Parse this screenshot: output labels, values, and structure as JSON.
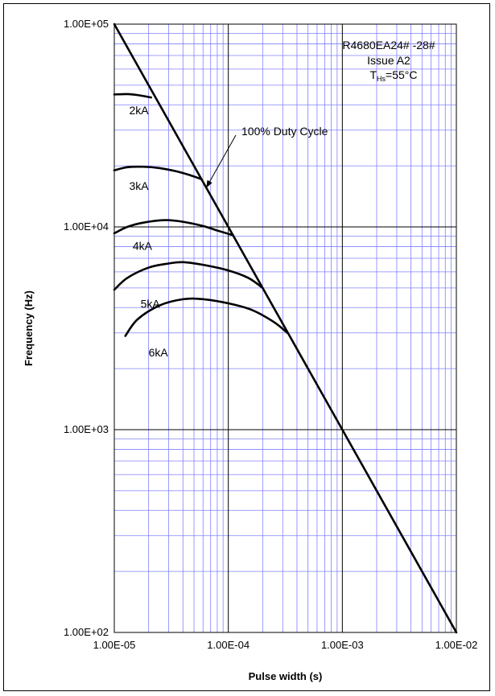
{
  "chart_data": {
    "type": "line",
    "x_scale": "log",
    "y_scale": "log",
    "xlabel": "Pulse width (s)",
    "ylabel": "Frequency (Hz)",
    "xlim": [
      1e-05,
      0.01
    ],
    "ylim": [
      100,
      100000
    ],
    "x_ticks": [
      "1.00E-05",
      "1.00E-04",
      "1.00E-03",
      "1.00E-02"
    ],
    "y_ticks": [
      "1.00E+05",
      "1.00E+04",
      "1.00E+03",
      "1.00E+02"
    ],
    "grid": true,
    "grid_color": "#8080ff",
    "major_grid_color": "#000000",
    "annotation": {
      "lines": [
        "R4680EA24# -28#",
        "Issue A2"
      ],
      "condition_prefix": "T",
      "condition_sub": "Hs",
      "condition_suffix": "=55°C",
      "position": "top-right"
    },
    "duty_cycle_label": "100% Duty Cycle",
    "series": [
      {
        "name": "100% Duty Cycle",
        "points": [
          [
            1e-05,
            100000
          ],
          [
            0.01,
            100
          ]
        ]
      },
      {
        "name": "2kA",
        "points": [
          [
            1e-05,
            45000
          ],
          [
            1.3e-05,
            45200
          ],
          [
            1.6e-05,
            44700
          ],
          [
            2.1e-05,
            43500
          ]
        ]
      },
      {
        "name": "3kA",
        "points": [
          [
            1e-05,
            19000
          ],
          [
            1.3e-05,
            19700
          ],
          [
            1.8e-05,
            19800
          ],
          [
            2.5e-05,
            19500
          ],
          [
            3.5e-05,
            18800
          ],
          [
            4.6e-05,
            18000
          ],
          [
            5.8e-05,
            17200
          ]
        ]
      },
      {
        "name": "4kA",
        "points": [
          [
            1e-05,
            9300
          ],
          [
            1.3e-05,
            10000
          ],
          [
            1.8e-05,
            10500
          ],
          [
            2.8e-05,
            10800
          ],
          [
            4e-05,
            10600
          ],
          [
            6e-05,
            10100
          ],
          [
            8e-05,
            9600
          ],
          [
            0.00011,
            9100
          ]
        ]
      },
      {
        "name": "5kA",
        "points": [
          [
            1e-05,
            4900
          ],
          [
            1.3e-05,
            5600
          ],
          [
            2e-05,
            6300
          ],
          [
            3e-05,
            6600
          ],
          [
            4e-05,
            6700
          ],
          [
            6e-05,
            6500
          ],
          [
            0.0001,
            6100
          ],
          [
            0.00015,
            5600
          ],
          [
            0.0002,
            5000
          ]
        ]
      },
      {
        "name": "6kA",
        "points": [
          [
            1.25e-05,
            2900
          ],
          [
            1.6e-05,
            3500
          ],
          [
            2.5e-05,
            4100
          ],
          [
            4e-05,
            4400
          ],
          [
            6e-05,
            4400
          ],
          [
            0.0001,
            4200
          ],
          [
            0.00016,
            3900
          ],
          [
            0.00025,
            3400
          ],
          [
            0.00033,
            3000
          ]
        ]
      }
    ],
    "curve_labels": [
      {
        "text": "2kA",
        "at": [
          1.35e-05,
          36000
        ]
      },
      {
        "text": "3kA",
        "at": [
          1.35e-05,
          15200
        ]
      },
      {
        "text": "4kA",
        "at": [
          1.45e-05,
          7700
        ]
      },
      {
        "text": "5kA",
        "at": [
          1.7e-05,
          4000
        ]
      },
      {
        "text": "6kA",
        "at": [
          2e-05,
          2300
        ]
      }
    ]
  }
}
